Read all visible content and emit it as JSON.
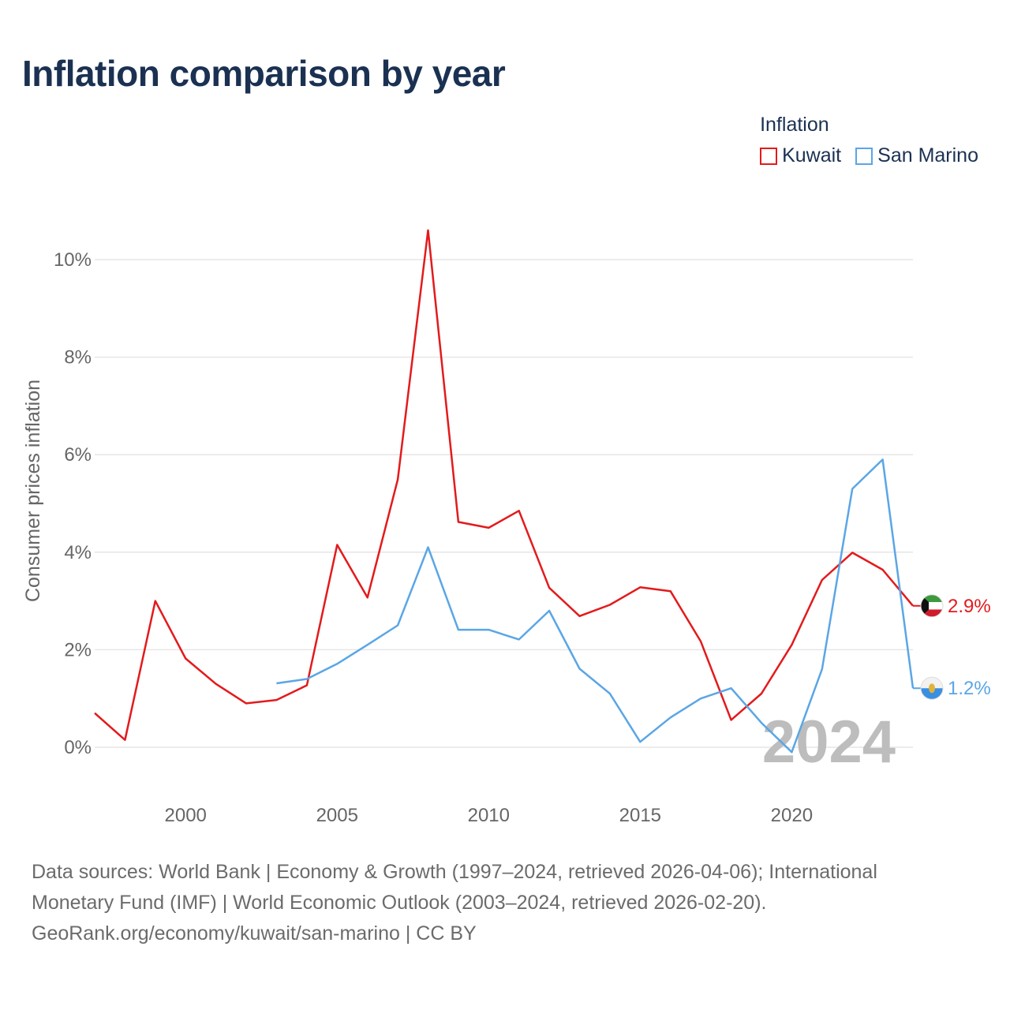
{
  "chart_data": {
    "type": "line",
    "title": "Inflation comparison by year",
    "legend_title": "Inflation",
    "legend_position": "top-right",
    "xlabel": "",
    "ylabel": "Consumer prices inflation",
    "xlim": [
      1997,
      2024
    ],
    "ylim": [
      -1,
      10.8
    ],
    "x_ticks": [
      2000,
      2005,
      2010,
      2015,
      2020
    ],
    "y_ticks": [
      0,
      2,
      4,
      6,
      8,
      10
    ],
    "y_tick_labels": [
      "0%",
      "2%",
      "4%",
      "6%",
      "8%",
      "10%"
    ],
    "grid": true,
    "watermark_year": "2024",
    "series": [
      {
        "name": "Kuwait",
        "color": "#e31a1c",
        "end_label": "2.9%",
        "flag": "kuwait-flag",
        "x": [
          1997,
          1998,
          1999,
          2000,
          2001,
          2002,
          2003,
          2004,
          2005,
          2006,
          2007,
          2008,
          2009,
          2010,
          2011,
          2012,
          2013,
          2014,
          2015,
          2016,
          2017,
          2018,
          2019,
          2020,
          2021,
          2022,
          2023,
          2024
        ],
        "values": [
          0.7,
          0.15,
          3.0,
          1.82,
          1.3,
          0.9,
          0.97,
          1.27,
          4.15,
          3.07,
          5.49,
          10.6,
          4.62,
          4.5,
          4.85,
          3.27,
          2.69,
          2.92,
          3.28,
          3.2,
          2.17,
          0.56,
          1.1,
          2.1,
          3.43,
          3.99,
          3.64,
          2.9
        ]
      },
      {
        "name": "San Marino",
        "color": "#5aa6e6",
        "end_label": "1.2%",
        "flag": "san-marino-flag",
        "x": [
          2003,
          2004,
          2005,
          2006,
          2007,
          2008,
          2009,
          2010,
          2011,
          2012,
          2013,
          2014,
          2015,
          2016,
          2017,
          2018,
          2019,
          2020,
          2021,
          2022,
          2023,
          2024
        ],
        "values": [
          1.31,
          1.4,
          1.71,
          2.1,
          2.5,
          4.1,
          2.41,
          2.41,
          2.21,
          2.8,
          1.61,
          1.1,
          0.11,
          0.61,
          1.0,
          1.21,
          0.5,
          -0.1,
          1.6,
          5.3,
          5.9,
          1.21
        ]
      }
    ]
  },
  "footer": {
    "line1": "Data sources: World Bank | Economy & Growth (1997–2024, retrieved 2026-04-06); International",
    "line2": "Monetary Fund (IMF) | World Economic Outlook (2003–2024, retrieved 2026-02-20).",
    "line3": "GeoRank.org/economy/kuwait/san-marino | CC BY"
  }
}
